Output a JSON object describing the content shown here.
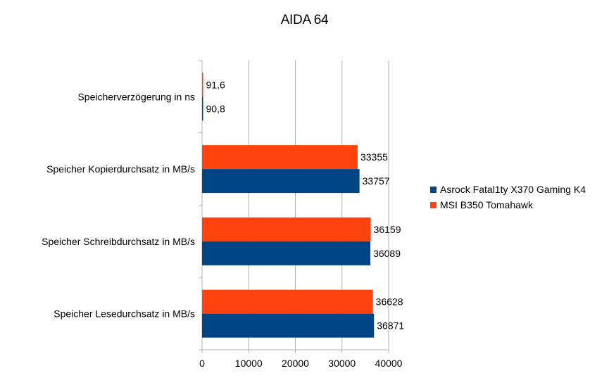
{
  "chart_data": {
    "type": "bar",
    "orientation": "horizontal",
    "title": "AIDA 64",
    "categories": [
      "Speicherverzögerung in ns",
      "Speicher Kopierdurchsatz in MB/s",
      "Speicher Schreibdurchsatz in MB/s",
      "Speicher Lesedurchsatz in MB/s"
    ],
    "series": [
      {
        "name": "Asrock Fatal1ty X370 Gaming K4",
        "color": "#004586",
        "values": [
          90.8,
          33757,
          36089,
          36871
        ],
        "labels": [
          "90,8",
          "33757",
          "36089",
          "36871"
        ]
      },
      {
        "name": "MSI B350 Tomahawk",
        "color": "#ff420e",
        "values": [
          91.6,
          33355,
          36159,
          36628
        ],
        "labels": [
          "91,6",
          "33355",
          "36159",
          "36628"
        ]
      }
    ],
    "xlim": [
      0,
      40000
    ],
    "xticks": [
      0,
      10000,
      20000,
      30000,
      40000
    ],
    "xtick_labels": [
      "0",
      "10000",
      "20000",
      "30000",
      "40000"
    ],
    "grid": "vertical",
    "legend": "right"
  }
}
